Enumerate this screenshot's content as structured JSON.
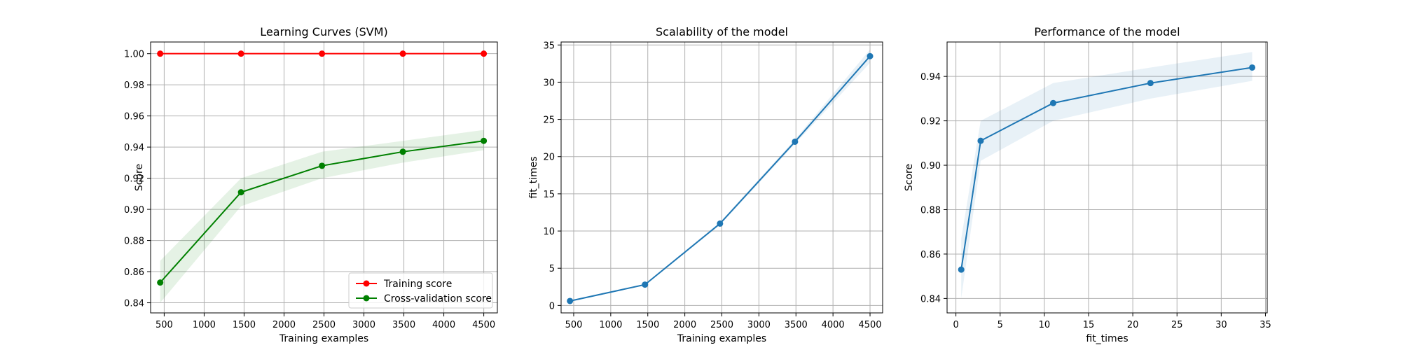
{
  "chart_data": [
    {
      "type": "line",
      "title": "Learning Curves (SVM)",
      "xlabel": "Training examples",
      "ylabel": "Score",
      "xlim": [
        330,
        4670
      ],
      "ylim": [
        0.8335,
        1.0075
      ],
      "xticks": [
        500,
        1000,
        1500,
        2000,
        2500,
        3000,
        3500,
        4000,
        4500
      ],
      "xtick_labels": [
        "500",
        "1000",
        "1500",
        "2000",
        "2500",
        "3000",
        "3500",
        "4000",
        "4500"
      ],
      "yticks": [
        0.84,
        0.86,
        0.88,
        0.9,
        0.92,
        0.94,
        0.96,
        0.98,
        1.0
      ],
      "ytick_labels": [
        "0.84",
        "0.86",
        "0.88",
        "0.90",
        "0.92",
        "0.94",
        "0.96",
        "0.98",
        "1.00"
      ],
      "grid": true,
      "legend_position": "lower-right",
      "x": [
        450,
        1462,
        2475,
        3487,
        4500
      ],
      "series": [
        {
          "name": "Training score",
          "color": "#ff0000",
          "marker": "circle",
          "values": [
            1.0,
            1.0,
            1.0,
            1.0,
            1.0
          ],
          "band_lower": [
            1.0,
            1.0,
            1.0,
            1.0,
            1.0
          ],
          "band_upper": [
            1.0,
            1.0,
            1.0,
            1.0,
            1.0
          ]
        },
        {
          "name": "Cross-validation score",
          "color": "#008000",
          "marker": "circle",
          "values": [
            0.853,
            0.911,
            0.928,
            0.937,
            0.944
          ],
          "band_lower": [
            0.84,
            0.902,
            0.92,
            0.93,
            0.938
          ],
          "band_upper": [
            0.867,
            0.92,
            0.937,
            0.944,
            0.951
          ]
        }
      ]
    },
    {
      "type": "line",
      "title": "Scalability of the model",
      "xlabel": "Training examples",
      "ylabel": "fit_times",
      "xlim": [
        330,
        4670
      ],
      "ylim": [
        -1.0,
        35.4
      ],
      "xticks": [
        500,
        1000,
        1500,
        2000,
        2500,
        3000,
        3500,
        4000,
        4500
      ],
      "xtick_labels": [
        "500",
        "1000",
        "1500",
        "2000",
        "2500",
        "3000",
        "3500",
        "4000",
        "4500"
      ],
      "yticks": [
        0,
        5,
        10,
        15,
        20,
        25,
        30,
        35
      ],
      "ytick_labels": [
        "0",
        "5",
        "10",
        "15",
        "20",
        "25",
        "30",
        "35"
      ],
      "grid": true,
      "x": [
        450,
        1462,
        2475,
        3487,
        4500
      ],
      "series": [
        {
          "color": "#1f77b4",
          "marker": "circle",
          "values": [
            0.6,
            2.8,
            11.0,
            22.0,
            33.5
          ],
          "band_lower": [
            0.5,
            2.7,
            10.8,
            21.7,
            32.6
          ],
          "band_upper": [
            0.7,
            2.9,
            11.2,
            22.3,
            34.4
          ]
        }
      ]
    },
    {
      "type": "line",
      "title": "Performance of the model",
      "xlabel": "fit_times",
      "ylabel": "Score",
      "xlim": [
        -1.0,
        35.2
      ],
      "ylim": [
        0.8335,
        0.9555
      ],
      "xticks": [
        0,
        5,
        10,
        15,
        20,
        25,
        30,
        35
      ],
      "xtick_labels": [
        "0",
        "5",
        "10",
        "15",
        "20",
        "25",
        "30",
        "35"
      ],
      "yticks": [
        0.84,
        0.86,
        0.88,
        0.9,
        0.92,
        0.94
      ],
      "ytick_labels": [
        "0.84",
        "0.86",
        "0.88",
        "0.90",
        "0.92",
        "0.94"
      ],
      "grid": true,
      "x": [
        0.6,
        2.8,
        11.0,
        22.0,
        33.5
      ],
      "series": [
        {
          "color": "#1f77b4",
          "marker": "circle",
          "values": [
            0.853,
            0.911,
            0.928,
            0.937,
            0.944
          ],
          "band_lower": [
            0.84,
            0.902,
            0.92,
            0.93,
            0.938
          ],
          "band_upper": [
            0.867,
            0.92,
            0.937,
            0.944,
            0.951
          ]
        }
      ]
    }
  ]
}
